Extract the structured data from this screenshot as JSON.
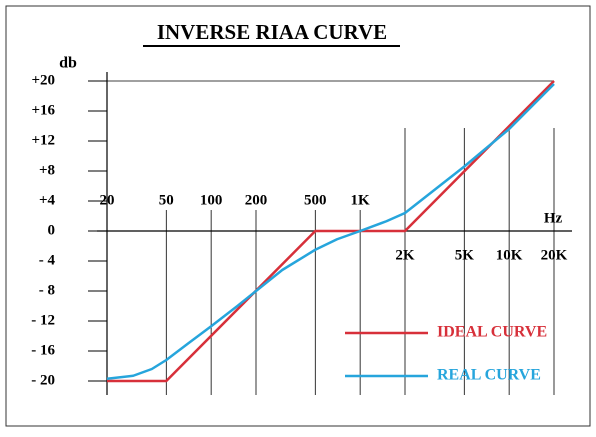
{
  "chart_data": {
    "type": "line",
    "title": "INVERSE  RIAA CURVE",
    "ylabel": "db",
    "xlabel": "Hz",
    "xlog": true,
    "xlim": [
      20,
      20000
    ],
    "ylim": [
      -20,
      20
    ],
    "xticks": [
      20,
      50,
      100,
      200,
      500,
      {
        "value": 1000,
        "label": "1K"
      },
      {
        "value": 2000,
        "label": "2K"
      },
      {
        "value": 5000,
        "label": "5K"
      },
      {
        "value": 10000,
        "label": "10K"
      },
      {
        "value": 20000,
        "label": "20K"
      }
    ],
    "yticks": [
      {
        "value": 20,
        "label": "+20"
      },
      {
        "value": 16,
        "label": "+16"
      },
      {
        "value": 12,
        "label": "+12"
      },
      {
        "value": 8,
        "label": "+8"
      },
      {
        "value": 4,
        "label": "+4"
      },
      0,
      {
        "value": -4,
        "label": "- 4"
      },
      {
        "value": -8,
        "label": "- 8"
      },
      {
        "value": -12,
        "label": "- 12"
      },
      {
        "value": -16,
        "label": "- 16"
      },
      {
        "value": -20,
        "label": "- 20"
      }
    ],
    "series": [
      {
        "name": "IDEAL CURVE",
        "color": "#d7303a",
        "x": [
          20,
          50,
          500,
          2000,
          20000
        ],
        "values": [
          -20,
          -20,
          0,
          0,
          20
        ]
      },
      {
        "name": "REAL CURVE",
        "color": "#26a5dc",
        "x": [
          20,
          30,
          40,
          50,
          70,
          100,
          150,
          200,
          300,
          500,
          700,
          1000,
          1500,
          2000,
          5000,
          10000,
          20000
        ],
        "values": [
          -19.7,
          -19.3,
          -18.4,
          -17.2,
          -15,
          -12.7,
          -10,
          -8,
          -5.2,
          -2.5,
          -1.1,
          0,
          1.3,
          2.4,
          8.6,
          13.6,
          19.6
        ]
      }
    ]
  }
}
